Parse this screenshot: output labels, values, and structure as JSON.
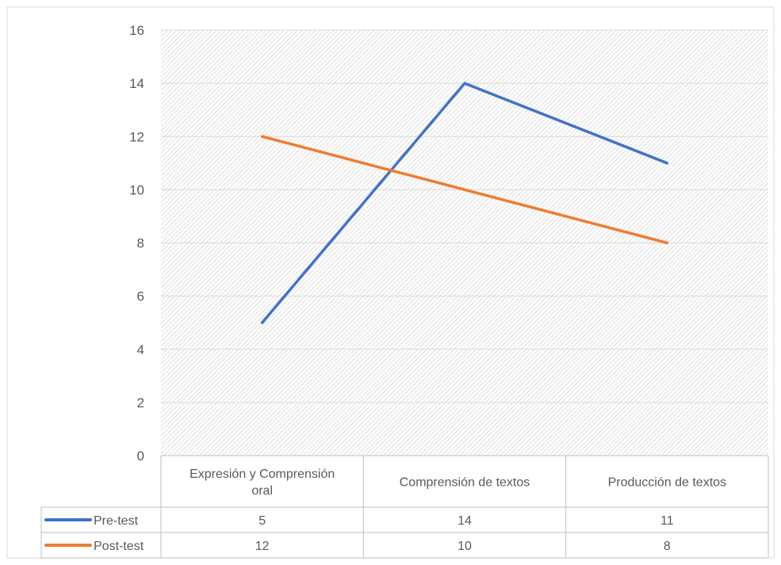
{
  "chart_data": {
    "type": "line",
    "title": "",
    "xlabel": "",
    "ylabel": "",
    "categories": [
      "Expresión y Comprensión oral",
      "Comprensión de textos",
      "Producción de textos"
    ],
    "category_lines": [
      [
        "Expresión y Comprensión",
        "oral"
      ],
      [
        "Comprensión de textos"
      ],
      [
        "Producción de textos"
      ]
    ],
    "series": [
      {
        "name": "Pre-test",
        "values": [
          5,
          14,
          11
        ],
        "color": "#4472C4"
      },
      {
        "name": "Post-test",
        "values": [
          12,
          10,
          8
        ],
        "color": "#ED7D31"
      }
    ],
    "ylim": [
      0,
      16
    ],
    "yticks": [
      0,
      2,
      4,
      6,
      8,
      10,
      12,
      14,
      16
    ],
    "grid": true,
    "plot_fill": "hatched-gray",
    "legend": "data-table-bottom",
    "data_table": true
  }
}
